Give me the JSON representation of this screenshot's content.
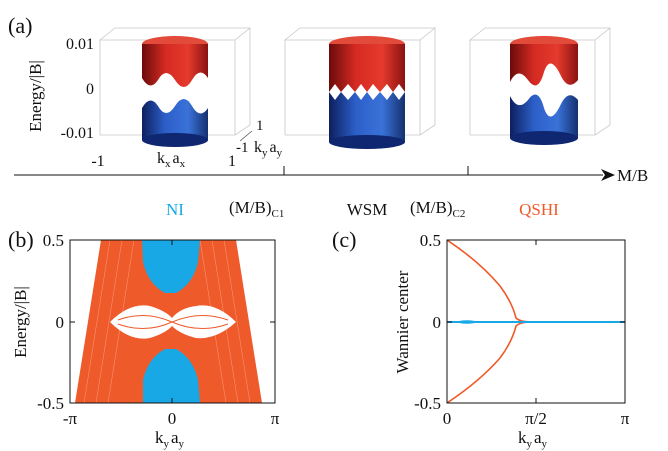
{
  "figure": {
    "panel_a": {
      "label": "(a)",
      "ylabel": "Energy/|B|",
      "yticks": [
        "0.01",
        "0",
        "-0.01"
      ],
      "xticks": [
        "-1",
        "1"
      ],
      "kx_label": {
        "k": "k",
        "sub1": "x",
        "a": "a",
        "sub2": "x"
      },
      "ky_label": {
        "k": "k",
        "sub1": "y",
        "a": "a",
        "sub2": "y"
      },
      "ky_ticks": [
        "1",
        "-1"
      ],
      "phase_axis_label": "M/B",
      "phases": [
        {
          "name": "NI",
          "color": "#19a8e6"
        },
        {
          "name": "WSM",
          "color": "#111111"
        },
        {
          "name": "QSHI",
          "color": "#ef5a2a"
        }
      ],
      "critical_points": [
        {
          "main": "(M/B)",
          "sub": "C1"
        },
        {
          "main": "(M/B)",
          "sub": "C2"
        }
      ]
    },
    "panel_b": {
      "label": "(b)",
      "ylabel": "Energy/|B|",
      "yticks": [
        "0.5",
        "0",
        "-0.5"
      ],
      "xticks": [
        "-π",
        "0",
        "π"
      ],
      "xlabel": {
        "k": "k",
        "sub1": "y",
        "a": "a",
        "sub2": "y"
      }
    },
    "panel_c": {
      "label": "(c)",
      "ylabel": "Wannier center",
      "yticks": [
        "0.5",
        "0",
        "-0.5"
      ],
      "xticks": [
        "0",
        "π/2",
        "π"
      ],
      "xlabel": {
        "k": "k",
        "sub1": "y",
        "a": "a",
        "sub2": "y"
      }
    },
    "colors": {
      "orange": "#ef5a2a",
      "blue": "#19a8e6",
      "red": "#c8201e",
      "navy": "#1b3d9a"
    }
  }
}
